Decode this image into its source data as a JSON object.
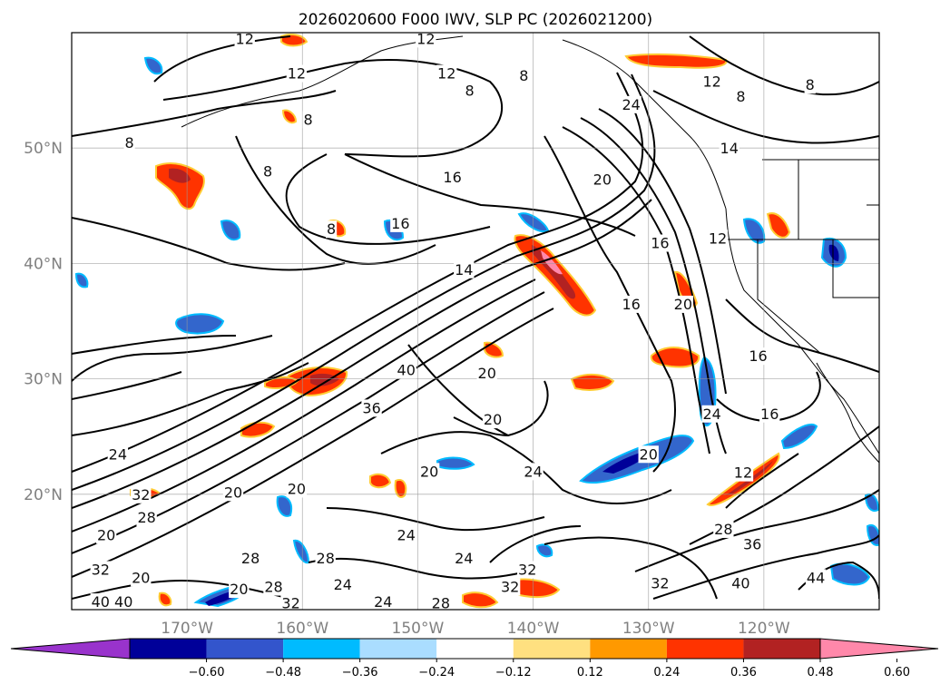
{
  "title": "2026020600 F000 IWV, SLP PC (2026021200)",
  "map": {
    "lon_range": [
      -180,
      -110
    ],
    "lat_range": [
      10,
      60
    ],
    "lon_ticks": [
      "170°W",
      "160°W",
      "150°W",
      "140°W",
      "130°W",
      "120°W"
    ],
    "lat_ticks": [
      "50°N",
      "40°N",
      "30°N",
      "20°N"
    ],
    "grid": true
  },
  "colorbar": {
    "ticks": [
      "−0.60",
      "−0.48",
      "−0.36",
      "−0.24",
      "−0.12",
      "0.12",
      "0.24",
      "0.36",
      "0.48",
      "0.60"
    ],
    "colors": [
      "#9933cc",
      "#000099",
      "#3355cc",
      "#00bbff",
      "#aaddff",
      "#ffffff",
      "#ffe080",
      "#ff9900",
      "#ff3300",
      "#b22222",
      "#ff88aa"
    ],
    "extend": "both"
  },
  "contour_labels": [
    {
      "text": "12",
      "lon": -160.5,
      "lat": 56.5
    },
    {
      "text": "12",
      "lon": -147.5,
      "lat": 56.5
    },
    {
      "text": "12",
      "lon": -149.3,
      "lat": 59.5
    },
    {
      "text": "12",
      "lon": -165,
      "lat": 59.5
    },
    {
      "text": "8",
      "lon": -145.5,
      "lat": 55
    },
    {
      "text": "8",
      "lon": -140.8,
      "lat": 56.3
    },
    {
      "text": "8",
      "lon": -159.5,
      "lat": 52.5
    },
    {
      "text": "8",
      "lon": -175,
      "lat": 50.5
    },
    {
      "text": "8",
      "lon": -163,
      "lat": 48
    },
    {
      "text": "8",
      "lon": -157.5,
      "lat": 43
    },
    {
      "text": "16",
      "lon": -147,
      "lat": 47.5
    },
    {
      "text": "16",
      "lon": -151.5,
      "lat": 43.5
    },
    {
      "text": "20",
      "lon": -134,
      "lat": 47.3
    },
    {
      "text": "24",
      "lon": -131.5,
      "lat": 53.8
    },
    {
      "text": "12",
      "lon": -124.5,
      "lat": 55.8
    },
    {
      "text": "8",
      "lon": -122,
      "lat": 54.5
    },
    {
      "text": "8",
      "lon": -116,
      "lat": 55.5
    },
    {
      "text": "14",
      "lon": -123,
      "lat": 50
    },
    {
      "text": "16",
      "lon": -129,
      "lat": 41.8
    },
    {
      "text": "12",
      "lon": -124,
      "lat": 42.2
    },
    {
      "text": "20",
      "lon": -127,
      "lat": 36.5
    },
    {
      "text": "16",
      "lon": -131.5,
      "lat": 36.5
    },
    {
      "text": "14",
      "lon": -146,
      "lat": 39.5
    },
    {
      "text": "16",
      "lon": -120.5,
      "lat": 32
    },
    {
      "text": "40",
      "lon": -151,
      "lat": 30.8
    },
    {
      "text": "20",
      "lon": -144,
      "lat": 30.5
    },
    {
      "text": "36",
      "lon": -154,
      "lat": 27.5
    },
    {
      "text": "20",
      "lon": -143.5,
      "lat": 26.5
    },
    {
      "text": "24",
      "lon": -124.5,
      "lat": 27
    },
    {
      "text": "16",
      "lon": -119.5,
      "lat": 27
    },
    {
      "text": "24",
      "lon": -176,
      "lat": 23.5
    },
    {
      "text": "20",
      "lon": -130,
      "lat": 23.5
    },
    {
      "text": "24",
      "lon": -140,
      "lat": 22
    },
    {
      "text": "20",
      "lon": -149,
      "lat": 22
    },
    {
      "text": "12",
      "lon": -121.8,
      "lat": 21.9
    },
    {
      "text": "20",
      "lon": -166,
      "lat": 20.2
    },
    {
      "text": "20",
      "lon": -160.5,
      "lat": 20.5
    },
    {
      "text": "32",
      "lon": -174,
      "lat": 20
    },
    {
      "text": "28",
      "lon": -173.5,
      "lat": 18
    },
    {
      "text": "20",
      "lon": -177,
      "lat": 16.5
    },
    {
      "text": "28",
      "lon": -164.5,
      "lat": 14.5
    },
    {
      "text": "28",
      "lon": -158,
      "lat": 14.5
    },
    {
      "text": "24",
      "lon": -151,
      "lat": 16.5
    },
    {
      "text": "24",
      "lon": -146,
      "lat": 14.5
    },
    {
      "text": "28",
      "lon": -123.5,
      "lat": 17
    },
    {
      "text": "36",
      "lon": -121,
      "lat": 15.7
    },
    {
      "text": "32",
      "lon": -177.5,
      "lat": 13.5
    },
    {
      "text": "20",
      "lon": -174,
      "lat": 12.8
    },
    {
      "text": "32",
      "lon": -140.5,
      "lat": 13.5
    },
    {
      "text": "32",
      "lon": -142,
      "lat": 12
    },
    {
      "text": "24",
      "lon": -156.5,
      "lat": 12.2
    },
    {
      "text": "32",
      "lon": -129,
      "lat": 12.3
    },
    {
      "text": "40",
      "lon": -122,
      "lat": 12.3
    },
    {
      "text": "44",
      "lon": -115.5,
      "lat": 12.8
    },
    {
      "text": "28",
      "lon": -162.5,
      "lat": 12
    },
    {
      "text": "20",
      "lon": -165.5,
      "lat": 11.8
    },
    {
      "text": "32",
      "lon": -161,
      "lat": 10.6
    },
    {
      "text": "24",
      "lon": -153,
      "lat": 10.7
    },
    {
      "text": "28",
      "lon": -148,
      "lat": 10.6
    },
    {
      "text": "40",
      "lon": -177.5,
      "lat": 10.7
    },
    {
      "text": "40",
      "lon": -175.5,
      "lat": 10.7
    }
  ]
}
